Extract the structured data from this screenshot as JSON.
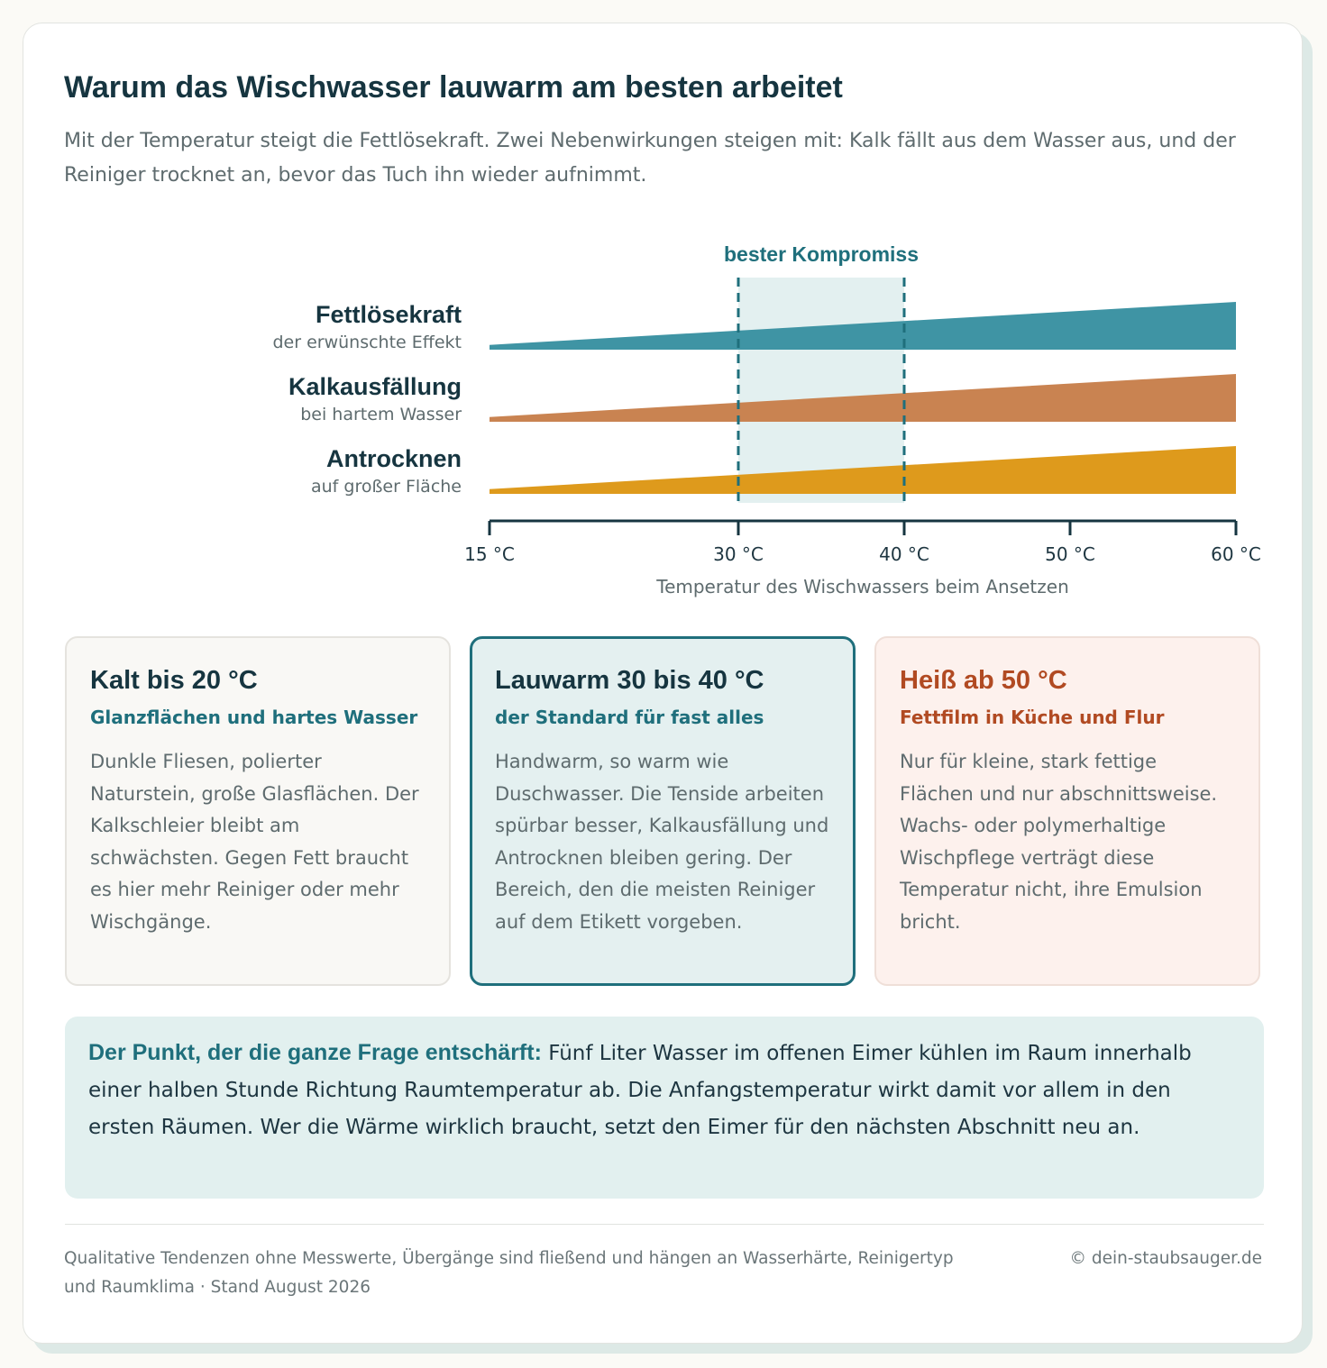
{
  "header": {
    "title": "Warum das Wischwasser lauwarm am besten arbeitet",
    "subtitle": "Mit der Temperatur steigt die Fettlösekraft. Zwei Nebenwirkungen steigen mit: Kalk fällt aus dem Wasser aus, und der Reiniger trocknet an, bevor das Tuch ihn wieder aufnimmt."
  },
  "chart_data": {
    "type": "area",
    "title": "",
    "xlabel": "Temperatur des Wischwassers beim Ansetzen",
    "ylabel": "",
    "xlim": [
      15,
      60
    ],
    "x": [
      15,
      60
    ],
    "xticks": [
      {
        "value": 15,
        "label": "15 °C"
      },
      {
        "value": 30,
        "label": "30 °C"
      },
      {
        "value": 40,
        "label": "40 °C"
      },
      {
        "value": 50,
        "label": "50 °C"
      },
      {
        "value": 60,
        "label": "60 °C"
      }
    ],
    "series": [
      {
        "name": "Fettlösekraft",
        "sublabel": "der erwünschte Effekt",
        "color": "#3f94a4",
        "values": [
          0.1,
          1.0
        ]
      },
      {
        "name": "Kalkausfällung",
        "sublabel": "bei hartem Wasser",
        "color": "#c98351",
        "values": [
          0.1,
          1.0
        ]
      },
      {
        "name": "Antrocknen",
        "sublabel": "auf großer Fläche",
        "color": "#de9a1c",
        "values": [
          0.1,
          1.0
        ]
      }
    ],
    "highlight": {
      "label": "bester Kompromiss",
      "from": 30,
      "to": 40,
      "color": "#1f6f7c",
      "fill": "#e3f0f0"
    },
    "grid": false,
    "legend": "left"
  },
  "ranges": [
    {
      "title": "Kalt bis 20 °C",
      "subtitle": "Glanzflächen und hartes Wasser",
      "body": "Dunkle Fliesen, polierter Naturstein, große Glasflächen. Der Kalkschleier bleibt am schwächsten. Gegen Fett braucht es hier mehr Reiniger oder mehr Wischgänge."
    },
    {
      "title": "Lauwarm 30 bis 40 °C",
      "subtitle": "der Standard für fast alles",
      "body": "Handwarm, so warm wie Duschwasser. Die Tenside arbeiten spürbar besser, Kalkausfällung und Antrocknen bleiben gering. Der Bereich, den die meisten Reiniger auf dem Etikett vorgeben."
    },
    {
      "title": "Heiß ab 50 °C",
      "subtitle": "Fettfilm in Küche und Flur",
      "body": "Nur für kleine, stark fettige Flächen und nur abschnittsweise. Wachs- oder polymerhaltige Wischpflege verträgt diese Temperatur nicht, ihre Emulsion bricht."
    }
  ],
  "note": {
    "lead": "Der Punkt, der die ganze Frage entschärft:",
    "text": "Fünf Liter Wasser im offenen Eimer kühlen im Raum innerhalb einer halben Stunde Richtung Raumtemperatur ab. Die Anfangstemperatur wirkt damit vor allem in den ersten Räumen. Wer die Wärme wirklich braucht, setzt den Eimer für den nächsten Abschnitt neu an."
  },
  "footer": {
    "note": "Qualitative Tendenzen ohne Messwerte, Übergänge sind fließend und hängen an Wasserhärte, Reinigertyp und Raumklima · Stand August 2026",
    "copyright": "© dein-staubsauger.de"
  },
  "colors": {
    "accent": "#1f6f7c",
    "hot": "#b14a22",
    "heading": "#163540",
    "muted": "#5e6b6e"
  }
}
